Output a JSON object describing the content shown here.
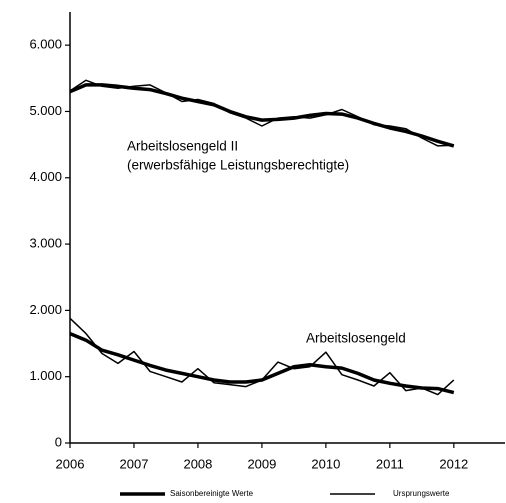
{
  "chart_data": {
    "type": "line",
    "x": [
      2006,
      2006.25,
      2006.5,
      2006.75,
      2007,
      2007.25,
      2007.5,
      2007.75,
      2008,
      2008.25,
      2008.5,
      2008.75,
      2009,
      2009.25,
      2009.5,
      2009.75,
      2010,
      2010.25,
      2010.5,
      2010.75,
      2011,
      2011.25,
      2011.5,
      2011.75,
      2012
    ],
    "series": [
      {
        "name": "Saisonbereinigte  Werte",
        "color": "#000000",
        "width": 3.5,
        "groups": [
          {
            "values": [
              5300,
              5400,
              5400,
              5380,
              5350,
              5330,
              5270,
              5200,
              5150,
              5100,
              5000,
              4920,
              4870,
              4880,
              4900,
              4940,
              4970,
              4960,
              4900,
              4820,
              4750,
              4700,
              4630,
              4550,
              4480
            ]
          },
          {
            "values": [
              1650,
              1550,
              1400,
              1330,
              1250,
              1170,
              1100,
              1050,
              1000,
              950,
              920,
              920,
              950,
              1050,
              1150,
              1180,
              1150,
              1130,
              1050,
              950,
              900,
              860,
              830,
              820,
              760
            ]
          }
        ]
      },
      {
        "name": "Ursprungswerte",
        "color": "#000000",
        "width": 1.5,
        "groups": [
          {
            "values": [
              5310,
              5470,
              5380,
              5350,
              5380,
              5400,
              5280,
              5150,
              5180,
              5120,
              4980,
              4900,
              4780,
              4900,
              4920,
              4900,
              4950,
              5030,
              4920,
              4800,
              4780,
              4740,
              4600,
              4480,
              4490
            ]
          },
          {
            "values": [
              1880,
              1650,
              1350,
              1200,
              1380,
              1080,
              1000,
              920,
              1120,
              910,
              880,
              850,
              950,
              1220,
              1120,
              1150,
              1370,
              1030,
              950,
              860,
              1060,
              790,
              830,
              730,
              950
            ]
          }
        ]
      }
    ],
    "annotations": [
      "Arbeitslosengeld II",
      "(erwerbsfähige Leistungsberechtigte)",
      "Arbeitslosengeld"
    ],
    "xlim": [
      2006,
      2012.8
    ],
    "xticks": [
      2006,
      2007,
      2008,
      2009,
      2010,
      2011,
      2012
    ],
    "ylim": [
      0,
      6500
    ],
    "yticks": [
      0,
      {
        "value": 1000,
        "label": "1.000"
      },
      {
        "value": 2000,
        "label": "2.000"
      },
      {
        "value": 3000,
        "label": "3.000"
      },
      {
        "value": 4000,
        "label": "4.000"
      },
      {
        "value": 5000,
        "label": "5.000"
      },
      {
        "value": 6000,
        "label": "6.000"
      }
    ],
    "grid": false
  }
}
